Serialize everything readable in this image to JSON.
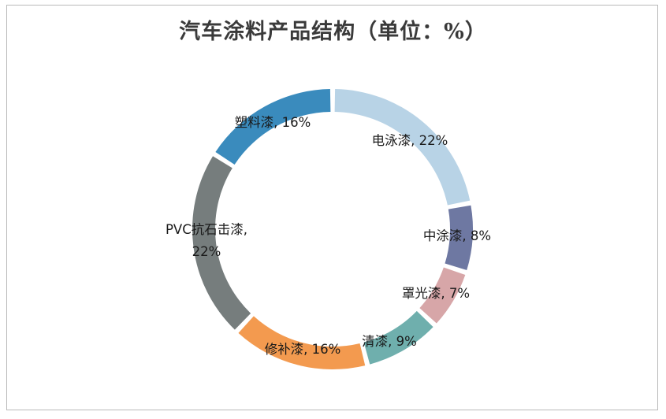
{
  "chart_data": {
    "type": "pie",
    "variant": "donut",
    "title": "汽车涂料产品结构（单位：%）",
    "slices": [
      {
        "label": "电泳漆",
        "value": 22,
        "text": "电泳漆, 22%",
        "color": "#b8d3e6"
      },
      {
        "label": "中涂漆",
        "value": 8,
        "text": "中涂漆, 8%",
        "color": "#6e78a2"
      },
      {
        "label": "罩光漆",
        "value": 7,
        "text": "罩光漆, 7%",
        "color": "#d7a6a8"
      },
      {
        "label": "清漆",
        "value": 9,
        "text": "清漆, 9%",
        "color": "#6fafad"
      },
      {
        "label": "修补漆",
        "value": 16,
        "text": "修补漆, 16%",
        "color": "#f39a4f"
      },
      {
        "label": "PVC抗石击漆",
        "value": 22,
        "text_lines": [
          "PVC抗石击漆,",
          "22%"
        ],
        "color": "#767d7d"
      },
      {
        "label": "塑料漆",
        "value": 16,
        "text": "塑料漆, 16%",
        "color": "#3a8bbd"
      }
    ],
    "legend": "none"
  }
}
